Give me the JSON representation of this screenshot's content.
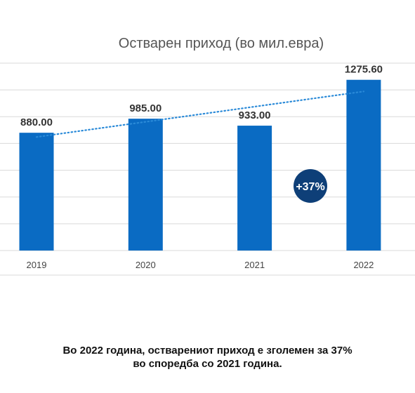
{
  "chart_data": {
    "type": "bar",
    "title": "Остварен приход (во мил.евра)",
    "categories": [
      "2019",
      "2020",
      "2021",
      "2022"
    ],
    "values": [
      880.0,
      985.0,
      933.0,
      1275.6
    ],
    "value_labels": [
      "880.00",
      "985.00",
      "933.00",
      "1275.60"
    ],
    "ylim": [
      0,
      1400
    ],
    "grid": true,
    "y_tick_labels_visible": false,
    "trendline": {
      "style": "dotted",
      "type": "linear"
    },
    "annotation": {
      "text": "+37%"
    },
    "colors": {
      "bar": "#0a6bc3",
      "trendline": "#2a8ad8",
      "badge": "#0e3f78",
      "title": "#555555",
      "grid": "#d9d9d9"
    }
  },
  "caption": {
    "line1": "Во 2022 година, остварениот приход е зголемен за 37%",
    "line2": "во споредба со 2021 година."
  }
}
